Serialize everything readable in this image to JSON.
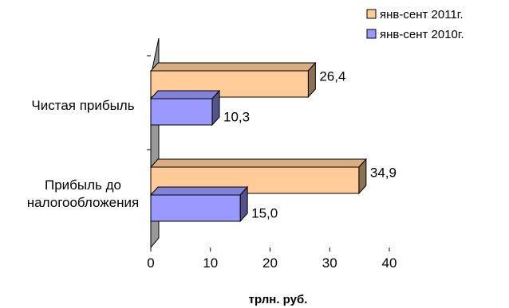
{
  "chart_data": {
    "type": "bar",
    "orientation": "horizontal",
    "style": "3d",
    "categories": [
      "Прибыль до налогообложения",
      "Чистая прибыль"
    ],
    "category_lines": [
      [
        "Прибыль до",
        "налогообложения"
      ],
      [
        "Чистая прибыль"
      ]
    ],
    "series": [
      {
        "name": "янв-сент 2011г.",
        "values": [
          34.9,
          26.4
        ],
        "labels": [
          "34,9",
          "26,4"
        ],
        "color": "#ffcc99"
      },
      {
        "name": "янв-сент 2010г.",
        "values": [
          15.0,
          10.3
        ],
        "labels": [
          "15,0",
          "10,3"
        ],
        "color": "#9999ff"
      }
    ],
    "xlabel": "трлн. руб.",
    "xlim": [
      0,
      40
    ],
    "xticks": [
      0,
      10,
      20,
      30,
      40
    ],
    "tick_labels": [
      "0",
      "10",
      "20",
      "30",
      "40"
    ],
    "grid": false,
    "legend_position": "top-right",
    "wall_color": "#999999"
  }
}
